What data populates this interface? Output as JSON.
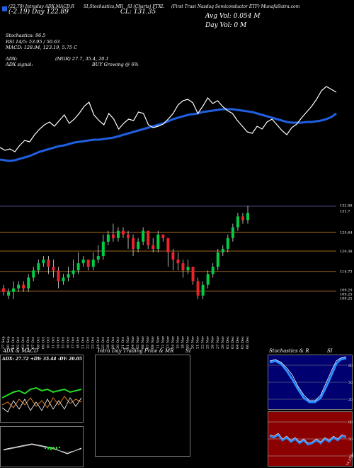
{
  "header": {
    "left_line1": "(22.79) Intraday ADX,MACD,R",
    "left_line2": "SI,Stochastics,MR",
    "mid": "SI (Charts) FTXL",
    "right1": "(First Trust Nasdaq Semiconductor ETF) MunafaSutra.com",
    "price_row": "(-2.19) Day 122.89",
    "cl": "CL: 131.35",
    "avg_vol": "Avg Vol: 0.054   M",
    "day_vol": "Day Vol: 0   M"
  },
  "indicators": {
    "stoch": "Stochastics: 96.5",
    "rsi": "RSI 14/5: 53.95 / 50.63",
    "macd": "MACD: 128.94, 123.19, 5.75 C",
    "adx": "ADX:",
    "adx_vals": "(MGR) 27.7, 35.4, 20.1",
    "adx_signal": "ADX  signal:",
    "buy": "BUY Growing @ 6%"
  },
  "colors": {
    "price_line": "#ffffff",
    "ma_line": "#1f5fe0",
    "bull": "#00cc44",
    "bear": "#e8242c",
    "level_line": "#8b5a1e",
    "top_line": "#6a4fa0"
  },
  "chart_data": [
    {
      "type": "line",
      "series": [
        {
          "values": [
            208,
            212,
            210,
            214,
            205,
            198,
            200,
            190,
            182,
            176,
            172,
            178,
            170,
            162,
            174,
            168,
            160,
            150,
            144,
            162,
            170,
            176,
            160,
            168,
            182,
            174,
            168,
            170,
            158,
            160,
            176,
            180,
            178,
            175,
            168,
            160,
            148,
            142,
            140,
            145,
            160,
            150,
            138,
            146,
            142,
            150,
            156,
            160,
            170,
            178,
            186,
            188,
            178,
            182,
            172,
            168,
            176,
            184,
            190,
            180,
            175,
            166,
            158,
            150,
            140,
            128,
            122,
            126,
            130
          ]
        },
        {
          "values": [
            225,
            226,
            227,
            226,
            224,
            222,
            220,
            217,
            214,
            212,
            210,
            208,
            206,
            205,
            203,
            201,
            200,
            199,
            198,
            197,
            197,
            196,
            195,
            194,
            192,
            190,
            188,
            186,
            184,
            182,
            180,
            178,
            176,
            174,
            171,
            168,
            166,
            164,
            162,
            161,
            160,
            158,
            157,
            156,
            155,
            154,
            154,
            154,
            155,
            156,
            157,
            158,
            160,
            162,
            164,
            166,
            168,
            170,
            172,
            173,
            173,
            173,
            172,
            172,
            171,
            170,
            168,
            165,
            160
          ]
        }
      ]
    },
    {
      "type": "bar",
      "right_axis": [
        "132.88",
        "131.7",
        "125.64",
        "120.38",
        "114.73",
        "109.25",
        "109.25",
        "109.25"
      ],
      "levels": [
        109.25,
        114.73,
        120.38,
        125.64,
        132.88
      ],
      "candles": [
        {
          "o": 110,
          "c": 109,
          "h": 111,
          "l": 108
        },
        {
          "o": 108,
          "c": 109,
          "h": 110,
          "l": 107
        },
        {
          "o": 109,
          "c": 110,
          "h": 112,
          "l": 107
        },
        {
          "o": 110,
          "c": 111,
          "h": 112,
          "l": 109
        },
        {
          "o": 111,
          "c": 110,
          "h": 112,
          "l": 109
        },
        {
          "o": 110,
          "c": 113,
          "h": 114,
          "l": 109
        },
        {
          "o": 113,
          "c": 115,
          "h": 116,
          "l": 112
        },
        {
          "o": 115,
          "c": 117,
          "h": 118,
          "l": 114
        },
        {
          "o": 117,
          "c": 118,
          "h": 119,
          "l": 116
        },
        {
          "o": 118,
          "c": 116,
          "h": 119,
          "l": 114
        },
        {
          "o": 116,
          "c": 115,
          "h": 118,
          "l": 113
        },
        {
          "o": 115,
          "c": 112,
          "h": 116,
          "l": 110
        },
        {
          "o": 112,
          "c": 113,
          "h": 114,
          "l": 111
        },
        {
          "o": 113,
          "c": 114,
          "h": 116,
          "l": 112
        },
        {
          "o": 114,
          "c": 115,
          "h": 118,
          "l": 113
        },
        {
          "o": 115,
          "c": 117,
          "h": 120,
          "l": 114
        },
        {
          "o": 117,
          "c": 118,
          "h": 119,
          "l": 116
        },
        {
          "o": 118,
          "c": 116,
          "h": 118,
          "l": 115
        },
        {
          "o": 116,
          "c": 118,
          "h": 120,
          "l": 115
        },
        {
          "o": 118,
          "c": 119,
          "h": 122,
          "l": 117
        },
        {
          "o": 119,
          "c": 123,
          "h": 125,
          "l": 118
        },
        {
          "o": 123,
          "c": 125,
          "h": 126,
          "l": 122
        },
        {
          "o": 125,
          "c": 124,
          "h": 128,
          "l": 123
        },
        {
          "o": 124,
          "c": 126,
          "h": 127,
          "l": 123
        },
        {
          "o": 126,
          "c": 125,
          "h": 127,
          "l": 124
        },
        {
          "o": 125,
          "c": 124,
          "h": 126,
          "l": 121
        },
        {
          "o": 124,
          "c": 121,
          "h": 125,
          "l": 119
        },
        {
          "o": 121,
          "c": 123,
          "h": 124,
          "l": 120
        },
        {
          "o": 123,
          "c": 126,
          "h": 127,
          "l": 122
        },
        {
          "o": 126,
          "c": 122,
          "h": 126,
          "l": 121
        },
        {
          "o": 122,
          "c": 121,
          "h": 124,
          "l": 120
        },
        {
          "o": 121,
          "c": 125,
          "h": 126,
          "l": 120
        },
        {
          "o": 125,
          "c": 124,
          "h": 125,
          "l": 123
        },
        {
          "o": 124,
          "c": 120,
          "h": 124,
          "l": 116
        },
        {
          "o": 120,
          "c": 118,
          "h": 121,
          "l": 115
        },
        {
          "o": 118,
          "c": 117,
          "h": 120,
          "l": 115
        },
        {
          "o": 117,
          "c": 115,
          "h": 118,
          "l": 113
        },
        {
          "o": 115,
          "c": 116,
          "h": 118,
          "l": 114
        },
        {
          "o": 116,
          "c": 112,
          "h": 116,
          "l": 111
        },
        {
          "o": 112,
          "c": 108,
          "h": 113,
          "l": 107
        },
        {
          "o": 108,
          "c": 111,
          "h": 112,
          "l": 107
        },
        {
          "o": 111,
          "c": 114,
          "h": 115,
          "l": 110
        },
        {
          "o": 114,
          "c": 116,
          "h": 117,
          "l": 113
        },
        {
          "o": 116,
          "c": 120,
          "h": 121,
          "l": 115
        },
        {
          "o": 120,
          "c": 121,
          "h": 122,
          "l": 119
        },
        {
          "o": 121,
          "c": 124,
          "h": 125,
          "l": 120
        },
        {
          "o": 124,
          "c": 127,
          "h": 128,
          "l": 123
        },
        {
          "o": 127,
          "c": 130,
          "h": 131,
          "l": 126
        },
        {
          "o": 130,
          "c": 129,
          "h": 131,
          "l": 128
        },
        {
          "o": 129,
          "c": 131,
          "h": 133,
          "l": 128
        }
      ],
      "dates": [
        "27 Sep",
        "30 Sep",
        "01 Oct",
        "02 Oct",
        "03 Oct",
        "04 Oct",
        "07 Oct",
        "08 Oct",
        "09 Oct",
        "10 Oct",
        "11 Oct",
        "14 Oct",
        "15 Oct",
        "16 Oct",
        "17 Oct",
        "18 Oct",
        "21 Oct",
        "22 Oct",
        "23 Oct",
        "24 Oct",
        "25 Oct",
        "28 Oct",
        "29 Oct",
        "30 Oct",
        "31 Oct",
        "01 Nov",
        "04 Nov",
        "05 Nov",
        "06 Nov",
        "07 Nov",
        "08 Nov",
        "11 Nov",
        "12 Nov",
        "13 Nov",
        "14 Nov",
        "15 Nov",
        "18 Nov",
        "19 Nov",
        "20 Nov",
        "21 Nov",
        "22 Nov",
        "25 Nov",
        "26 Nov",
        "27 Nov",
        "29 Nov",
        "02 Dec",
        "03 Dec",
        "04 Dec",
        "05 Dec",
        "06 Dec"
      ]
    }
  ],
  "panels": {
    "adx_title": "ADX  & MACD",
    "adx_vals": "ADX: 27.72  +DY: 35.44  -DY: 20.05",
    "intra_title": "Intra Day Trading Price  & MR",
    "intra_si": "SI",
    "stoch_title": "Stochastics & R",
    "stoch_si": "SI",
    "stoch_ticks": [
      "80",
      "50",
      "20"
    ],
    "rsi_ticks": [
      "80",
      "50",
      "20"
    ],
    "rsi_side": "14,27.09,55.4"
  }
}
